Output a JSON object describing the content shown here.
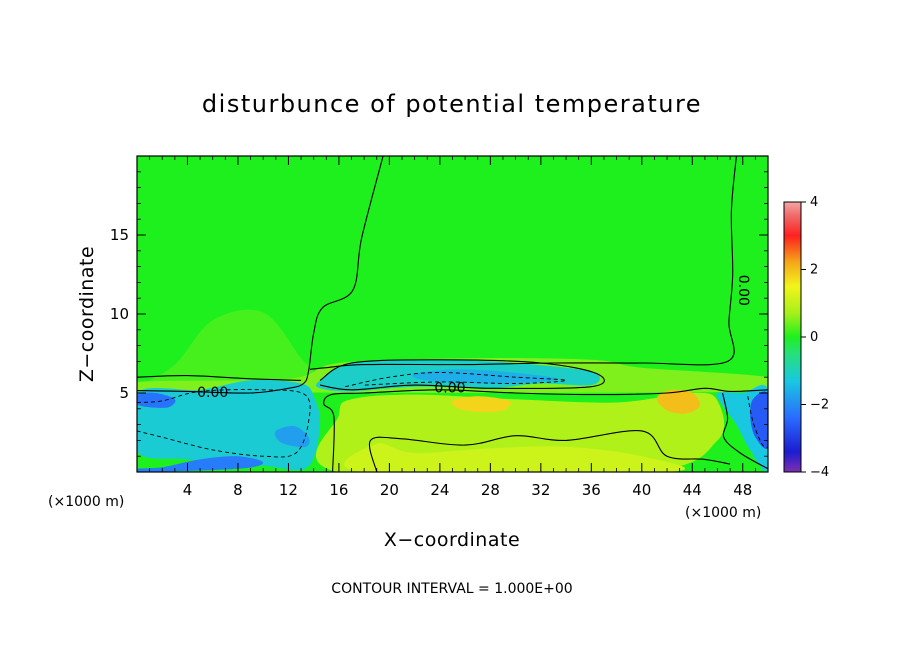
{
  "chart_data": {
    "type": "heatmap",
    "title": "disturbunce of potential temperature",
    "xlabel": "X−coordinate",
    "ylabel": "Z−coordinate",
    "x_unit_label_left": "(×1000 m)",
    "x_unit_label_right": "(×1000 m)",
    "xlim": [
      0,
      50
    ],
    "ylim": [
      0,
      20
    ],
    "x_ticks": [
      4,
      8,
      12,
      16,
      20,
      24,
      28,
      32,
      36,
      40,
      44,
      48
    ],
    "x_tick_labels": [
      "4",
      "8",
      "12",
      "16",
      "20",
      "24",
      "28",
      "32",
      "36",
      "40",
      "44",
      "48"
    ],
    "y_ticks": [
      5,
      10,
      15
    ],
    "y_tick_labels": [
      "5",
      "10",
      "15"
    ],
    "colorbar": {
      "min": -4,
      "max": 4,
      "ticks": [
        4,
        2,
        0,
        -2,
        -4
      ],
      "tick_labels": [
        "4",
        "2",
        "0",
        "−2",
        "−4"
      ],
      "stops": [
        {
          "v": -4,
          "color": "#7f2fb0"
        },
        {
          "v": -3.4,
          "color": "#1c1cd0"
        },
        {
          "v": -2.4,
          "color": "#2a6bff"
        },
        {
          "v": -1.3,
          "color": "#19c8e0"
        },
        {
          "v": -0.5,
          "color": "#26e07a"
        },
        {
          "v": 0,
          "color": "#1ef01e"
        },
        {
          "v": 0.7,
          "color": "#a6f01a"
        },
        {
          "v": 1.5,
          "color": "#f2f51a"
        },
        {
          "v": 2.2,
          "color": "#f5a81a"
        },
        {
          "v": 3.0,
          "color": "#ff2020"
        },
        {
          "v": 3.6,
          "color": "#f06a6a"
        },
        {
          "v": 4,
          "color": "#f5a6a6"
        }
      ]
    },
    "contour_labels": [
      {
        "text": "0.00",
        "x": 6.0,
        "z": 5.0
      },
      {
        "text": "0.00",
        "x": 24.8,
        "z": 5.3
      },
      {
        "text": "0.00",
        "x": 48.0,
        "z": 11.5,
        "rotated": true
      }
    ],
    "contour_interval_label": "CONTOUR INTERVAL = 1.000E+00",
    "field_regions": [
      {
        "id": "background",
        "value": 0.0,
        "polygon": [
          [
            0,
            0
          ],
          [
            50,
            0
          ],
          [
            50,
            20
          ],
          [
            0,
            20
          ]
        ]
      },
      {
        "id": "upper-left-slight-warm",
        "value": 0.2,
        "polygon": [
          [
            0,
            5.4
          ],
          [
            3,
            6.8
          ],
          [
            6,
            9.6
          ],
          [
            10,
            10.1
          ],
          [
            13,
            7.2
          ],
          [
            14,
            6.3
          ],
          [
            13,
            5.6
          ],
          [
            6,
            5.7
          ],
          [
            0,
            5.6
          ]
        ]
      },
      {
        "id": "inversion-band",
        "value": 0.5,
        "polygon": [
          [
            0,
            5.7
          ],
          [
            12,
            5.9
          ],
          [
            16,
            6.9
          ],
          [
            26,
            7.2
          ],
          [
            36,
            7.1
          ],
          [
            40,
            6.6
          ],
          [
            50,
            6.0
          ],
          [
            50,
            5.1
          ],
          [
            0,
            5.1
          ]
        ]
      },
      {
        "id": "left-cold-layer",
        "value": -1.2,
        "polygon": [
          [
            0,
            5.0
          ],
          [
            5,
            5.2
          ],
          [
            9,
            5.8
          ],
          [
            13,
            5.6
          ],
          [
            14,
            4.8
          ],
          [
            14.5,
            3.0
          ],
          [
            13.5,
            0.3
          ],
          [
            10,
            0.4
          ],
          [
            4,
            0.8
          ],
          [
            0,
            1.3
          ]
        ]
      },
      {
        "id": "left-cold-pocket-low",
        "value": -2.2,
        "polygon": [
          [
            0,
            0.2
          ],
          [
            2,
            0.3
          ],
          [
            5,
            0.8
          ],
          [
            8,
            1.0
          ],
          [
            10,
            0.6
          ],
          [
            8,
            0.2
          ],
          [
            0,
            0
          ]
        ]
      },
      {
        "id": "left-cold-pocket-top",
        "value": -2.3,
        "polygon": [
          [
            0,
            4.9
          ],
          [
            1.5,
            5.0
          ],
          [
            3,
            4.6
          ],
          [
            2.5,
            4.1
          ],
          [
            1,
            4.1
          ],
          [
            0,
            4.3
          ]
        ]
      },
      {
        "id": "left-cold-streak",
        "value": -1.8,
        "polygon": [
          [
            11,
            2.6
          ],
          [
            12.5,
            2.9
          ],
          [
            13.6,
            2.2
          ],
          [
            13.4,
            1.6
          ],
          [
            12,
            1.7
          ],
          [
            11.2,
            2.0
          ]
        ]
      },
      {
        "id": "mid-cold-band",
        "value": -1.1,
        "polygon": [
          [
            14.5,
            5.8
          ],
          [
            17,
            6.9
          ],
          [
            22,
            7.1
          ],
          [
            28,
            7.0
          ],
          [
            34,
            6.6
          ],
          [
            36.5,
            6.2
          ],
          [
            36,
            5.5
          ],
          [
            32,
            5.6
          ],
          [
            28,
            5.3
          ],
          [
            22,
            5.4
          ],
          [
            17,
            5.1
          ],
          [
            14.5,
            5.3
          ]
        ]
      },
      {
        "id": "mid-cold-core",
        "value": -1.6,
        "polygon": [
          [
            22,
            6.2
          ],
          [
            26,
            6.5
          ],
          [
            32,
            6.1
          ],
          [
            33,
            5.8
          ],
          [
            28,
            5.6
          ],
          [
            23,
            5.8
          ]
        ]
      },
      {
        "id": "warm-lower-middle",
        "value": 0.8,
        "polygon": [
          [
            16,
            0
          ],
          [
            16,
            3.6
          ],
          [
            17,
            4.6
          ],
          [
            22,
            4.9
          ],
          [
            30,
            4.6
          ],
          [
            38,
            4.4
          ],
          [
            44,
            5.0
          ],
          [
            46,
            4.5
          ],
          [
            46,
            2.0
          ],
          [
            40,
            0
          ]
        ]
      },
      {
        "id": "warm-floor",
        "value": 1.1,
        "polygon": [
          [
            18,
            0
          ],
          [
            19,
            1.8
          ],
          [
            22,
            1.2
          ],
          [
            28,
            1.5
          ],
          [
            34,
            1.6
          ],
          [
            40,
            1.0
          ],
          [
            42,
            0
          ]
        ]
      },
      {
        "id": "warm-spot-28",
        "value": 1.8,
        "polygon": [
          [
            25,
            4.5
          ],
          [
            27,
            4.8
          ],
          [
            29.5,
            4.5
          ],
          [
            29,
            3.9
          ],
          [
            27,
            3.8
          ],
          [
            25.5,
            4.0
          ]
        ]
      },
      {
        "id": "warm-spot-43",
        "value": 2.0,
        "polygon": [
          [
            41.2,
            4.7
          ],
          [
            42.4,
            5.2
          ],
          [
            44,
            5.0
          ],
          [
            44.6,
            4.2
          ],
          [
            43.5,
            3.7
          ],
          [
            42,
            3.9
          ]
        ]
      },
      {
        "id": "right-cold-column",
        "value": -1.3,
        "polygon": [
          [
            46,
            5.0
          ],
          [
            48,
            5.0
          ],
          [
            50,
            5.2
          ],
          [
            50,
            0.2
          ],
          [
            48.5,
            1.5
          ],
          [
            47.5,
            3.0
          ],
          [
            46.4,
            4.2
          ]
        ]
      },
      {
        "id": "right-cold-core",
        "value": -2.6,
        "polygon": [
          [
            48.8,
            4.6
          ],
          [
            50,
            4.9
          ],
          [
            50,
            1.6
          ],
          [
            49,
            2.2
          ],
          [
            48.6,
            3.4
          ]
        ]
      }
    ],
    "zero_contours": [
      [
        [
          19.5,
          20
        ],
        [
          17.8,
          14.8
        ],
        [
          17.1,
          11.5
        ],
        [
          14.7,
          10.4
        ],
        [
          14.0,
          8.8
        ],
        [
          13.6,
          6.4
        ],
        [
          13.2,
          5.6
        ],
        [
          12,
          5.3
        ],
        [
          9,
          5.0
        ],
        [
          4,
          5.1
        ],
        [
          0,
          5.15
        ]
      ],
      [
        [
          47.5,
          20
        ],
        [
          47.1,
          16.5
        ],
        [
          47.2,
          12.5
        ],
        [
          46.9,
          9.5
        ],
        [
          46.8,
          7.0
        ],
        [
          40,
          6.9
        ],
        [
          33,
          6.9
        ],
        [
          26,
          6.8
        ],
        [
          18,
          6.8
        ],
        [
          15,
          6.6
        ],
        [
          13.7,
          6.5
        ]
      ],
      [
        [
          0,
          6.0
        ],
        [
          4,
          6.1
        ],
        [
          9,
          5.9
        ],
        [
          13,
          5.8
        ]
      ],
      [
        [
          15.5,
          0
        ],
        [
          15.6,
          3.5
        ],
        [
          14.8,
          4.3
        ],
        [
          15.4,
          4.9
        ],
        [
          18,
          5.0
        ],
        [
          24,
          5.2
        ],
        [
          30,
          5.0
        ],
        [
          36,
          4.9
        ],
        [
          42,
          5.0
        ],
        [
          45,
          5.3
        ],
        [
          47,
          5.1
        ],
        [
          50,
          5.2
        ]
      ],
      [
        [
          14.5,
          5.5
        ],
        [
          17,
          5.2
        ],
        [
          22,
          5.5
        ],
        [
          28,
          5.3
        ],
        [
          36,
          5.4
        ],
        [
          36.5,
          6.2
        ],
        [
          32,
          6.9
        ],
        [
          24,
          7.1
        ],
        [
          17,
          6.9
        ],
        [
          14.5,
          5.8
        ]
      ],
      [
        [
          46.4,
          5.0
        ],
        [
          46.8,
          3.4
        ],
        [
          46.5,
          2.2
        ],
        [
          47.8,
          1.2
        ],
        [
          50,
          0.2
        ]
      ],
      [
        [
          19,
          0
        ],
        [
          18.5,
          2.0
        ],
        [
          21,
          2.1
        ],
        [
          26,
          1.7
        ],
        [
          30,
          2.3
        ],
        [
          34,
          2.0
        ],
        [
          40,
          2.6
        ],
        [
          42,
          1.0
        ],
        [
          45,
          0.8
        ],
        [
          47,
          0.5
        ]
      ]
    ],
    "negative_contours": [
      [
        [
          0,
          4.4
        ],
        [
          2,
          4.5
        ],
        [
          5,
          5.1
        ],
        [
          10,
          5.2
        ],
        [
          13.3,
          4.9
        ],
        [
          13.6,
          3.2
        ],
        [
          12.6,
          1.2
        ],
        [
          10,
          1.0
        ],
        [
          6,
          1.4
        ],
        [
          2,
          2.2
        ],
        [
          0,
          2.6
        ]
      ],
      [
        [
          16.5,
          5.4
        ],
        [
          20,
          6.0
        ],
        [
          24,
          6.3
        ],
        [
          30,
          6.0
        ],
        [
          34,
          5.8
        ],
        [
          30,
          5.6
        ],
        [
          24,
          5.7
        ],
        [
          18,
          5.5
        ]
      ],
      [
        [
          48.4,
          4.8
        ],
        [
          48.8,
          3.2
        ],
        [
          49.5,
          1.8
        ],
        [
          50,
          1.5
        ]
      ]
    ]
  }
}
